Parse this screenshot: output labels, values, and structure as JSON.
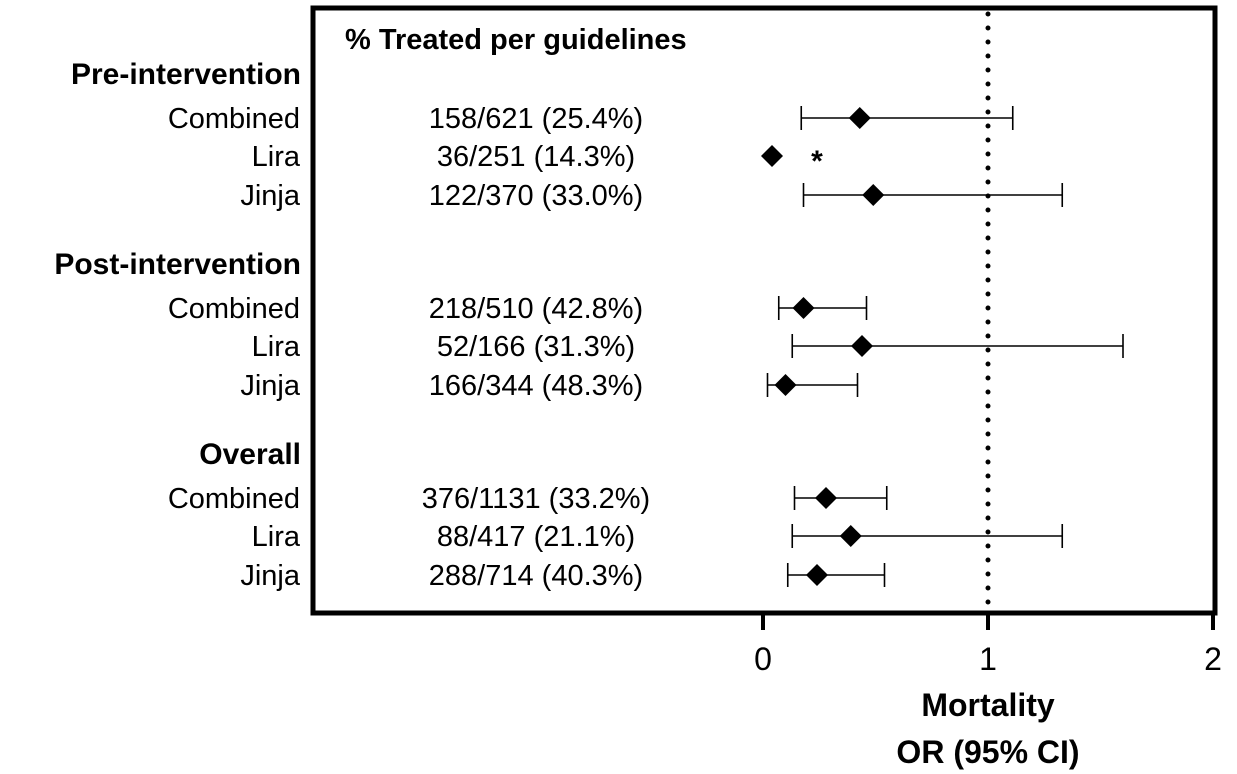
{
  "chart_data": {
    "type": "forest",
    "header": "% Treated per guidelines",
    "xlabel_line1": "Mortality",
    "xlabel_line2": "OR (95% CI)",
    "xlim": [
      0,
      2
    ],
    "xticks": [
      "0",
      "1",
      "2"
    ],
    "reference_line": 1,
    "groups": [
      {
        "name": "Pre-intervention",
        "rows": [
          {
            "label": "Combined",
            "count": "158/621 (25.4%)",
            "or": 0.43,
            "lo": 0.17,
            "hi": 1.11,
            "note": ""
          },
          {
            "label": "Lira",
            "count": "36/251 (14.3%)",
            "or": 0.04,
            "lo": null,
            "hi": null,
            "note": "*"
          },
          {
            "label": "Jinja",
            "count": "122/370 (33.0%)",
            "or": 0.49,
            "lo": 0.18,
            "hi": 1.33,
            "note": ""
          }
        ]
      },
      {
        "name": "Post-intervention",
        "rows": [
          {
            "label": "Combined",
            "count": "218/510 (42.8%)",
            "or": 0.18,
            "lo": 0.07,
            "hi": 0.46,
            "note": ""
          },
          {
            "label": "Lira",
            "count": "52/166 (31.3%)",
            "or": 0.44,
            "lo": 0.13,
            "hi": 1.6,
            "note": ""
          },
          {
            "label": "Jinja",
            "count": "166/344 (48.3%)",
            "or": 0.1,
            "lo": 0.02,
            "hi": 0.42,
            "note": ""
          }
        ]
      },
      {
        "name": "Overall",
        "rows": [
          {
            "label": "Combined",
            "count": "376/1131 (33.2%)",
            "or": 0.28,
            "lo": 0.14,
            "hi": 0.55,
            "note": ""
          },
          {
            "label": "Lira",
            "count": "88/417 (21.1%)",
            "or": 0.39,
            "lo": 0.13,
            "hi": 1.33,
            "note": ""
          },
          {
            "label": "Jinja",
            "count": "288/714 (40.3%)",
            "or": 0.24,
            "lo": 0.11,
            "hi": 0.54,
            "note": ""
          }
        ]
      }
    ]
  }
}
